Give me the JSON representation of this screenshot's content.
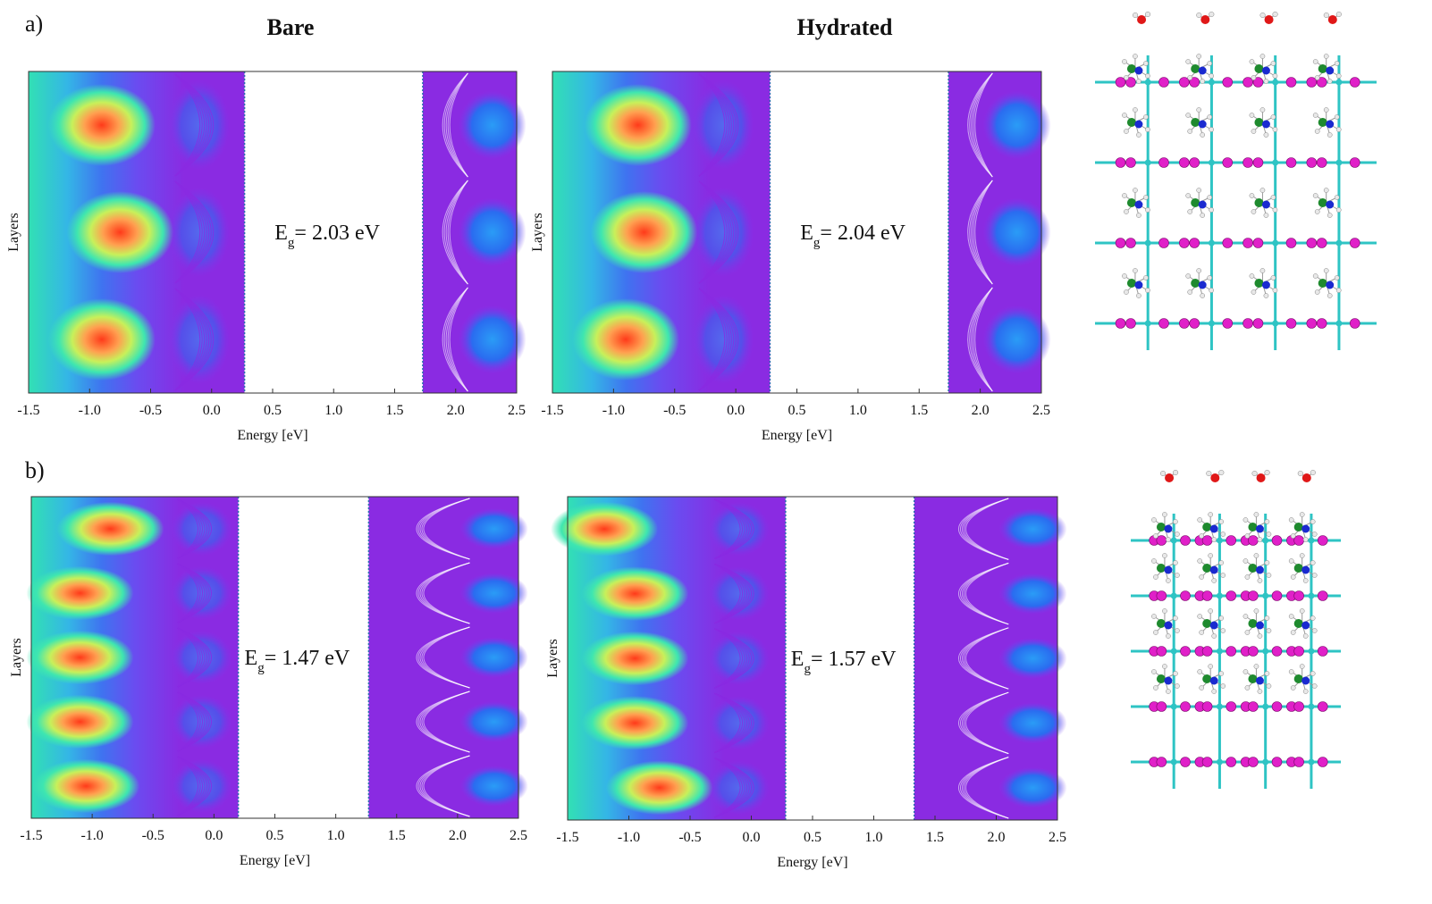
{
  "figure": {
    "panel_a_label": "a)",
    "panel_b_label": "b)",
    "col_titles": [
      "Bare",
      "Hydrated"
    ]
  },
  "colors": {
    "valence_low": "#32e0b4",
    "hotspot": "#ff3a1a",
    "band_violet": "#8a2be2",
    "band_blue": "#2a6cf0",
    "gap_line": "#2a6fb0",
    "atom_pb": "#2ec4c4",
    "atom_i": "#e020c8",
    "atom_c": "#1e8a2e",
    "atom_n": "#1a2ad0",
    "atom_h": "#e8e8e8",
    "atom_o": "#e01818"
  },
  "chart_data": [
    {
      "id": "a-bare",
      "type": "heatmap",
      "title": "Bare",
      "xlabel": "Energy [eV]",
      "ylabel": "Layers",
      "xlim": [
        -1.5,
        2.5
      ],
      "xticks": [
        "-1.5",
        "-1.0",
        "-0.5",
        "0.0",
        "0.5",
        "1.0",
        "1.5",
        "2.0",
        "2.5"
      ],
      "n_layers": 3,
      "vbm": 0.27,
      "cbm": 1.73,
      "gap_value": "2.03 eV",
      "hotspot_energies": [
        -0.9,
        -0.75,
        -0.9
      ]
    },
    {
      "id": "a-hydrated",
      "type": "heatmap",
      "title": "Hydrated",
      "xlabel": "Energy [eV]",
      "ylabel": "Layers",
      "xlim": [
        -1.5,
        2.5
      ],
      "xticks": [
        "-1.5",
        "-1.0",
        "-0.5",
        "0.0",
        "0.5",
        "1.0",
        "1.5",
        "2.0",
        "2.5"
      ],
      "n_layers": 3,
      "vbm": 0.28,
      "cbm": 1.74,
      "gap_value": "2.04 eV",
      "hotspot_energies": [
        -0.8,
        -0.75,
        -0.9
      ]
    },
    {
      "id": "b-bare",
      "type": "heatmap",
      "title": "",
      "xlabel": "Energy [eV]",
      "ylabel": "Layers",
      "xlim": [
        -1.5,
        2.5
      ],
      "xticks": [
        "-1.5",
        "-1.0",
        "-0.5",
        "0.0",
        "0.5",
        "1.0",
        "1.5",
        "2.0",
        "2.5"
      ],
      "n_layers": 5,
      "vbm": 0.2,
      "cbm": 1.27,
      "gap_value": "1.47 eV",
      "hotspot_energies": [
        -0.85,
        -1.1,
        -1.1,
        -1.1,
        -1.05
      ]
    },
    {
      "id": "b-hydrated",
      "type": "heatmap",
      "title": "",
      "xlabel": "Energy [eV]",
      "ylabel": "Layers",
      "xlim": [
        -1.5,
        2.5
      ],
      "xticks": [
        "-1.5",
        "-1.0",
        "-0.5",
        "0.0",
        "0.5",
        "1.0",
        "1.5",
        "2.0",
        "2.5"
      ],
      "n_layers": 5,
      "vbm": 0.28,
      "cbm": 1.33,
      "gap_value": "1.57 eV",
      "hotspot_energies": [
        -1.2,
        -0.95,
        -0.95,
        -0.95,
        -0.75
      ]
    }
  ],
  "structures": {
    "a": {
      "cols": 4,
      "inorganic_rows": 4,
      "organic_rows": 4,
      "water_molecules": 4
    },
    "b": {
      "cols": 4,
      "inorganic_rows": 5,
      "organic_rows": 4,
      "water_molecules": 4
    }
  }
}
